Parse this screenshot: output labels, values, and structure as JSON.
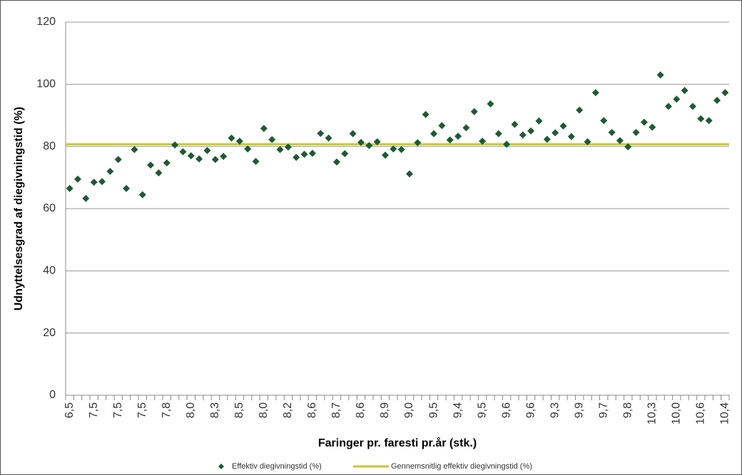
{
  "chart_data": {
    "type": "scatter",
    "x_label": "Faringer pr. faresti pr.år (stk.)",
    "y_label": "Udnyttelsesgrad af diegivningstid (%)",
    "categories": [
      "6,5",
      null,
      null,
      "7,5",
      null,
      null,
      "7,5",
      null,
      null,
      "7,5",
      null,
      null,
      "7,8",
      null,
      null,
      "8,0",
      null,
      null,
      "8,3",
      null,
      null,
      "8,5",
      null,
      null,
      "8,0",
      null,
      null,
      "8,2",
      null,
      null,
      "8,6",
      null,
      null,
      "8,7",
      null,
      null,
      "8,6",
      null,
      null,
      "8,9",
      null,
      null,
      "9,0",
      null,
      null,
      "9,5",
      null,
      null,
      "9,4",
      null,
      null,
      "9,5",
      null,
      null,
      "9,6",
      null,
      null,
      "9,6",
      null,
      null,
      "9,3",
      null,
      null,
      "9,9",
      null,
      null,
      "9,7",
      null,
      null,
      "9,8",
      null,
      null,
      "10,3",
      null,
      null,
      "10,0",
      null,
      null,
      "10,6",
      null,
      null,
      "10,4"
    ],
    "series": [
      {
        "name": "Effektiv diegivningstid (%)",
        "color": "#1e5a32",
        "values": [
          66.5,
          69.5,
          63.3,
          68.5,
          68.7,
          72,
          75.8,
          66.5,
          79,
          64.5,
          74,
          71.5,
          74.7,
          80.5,
          78.3,
          77,
          76,
          78.7,
          75.8,
          76.8,
          82.7,
          81.7,
          79.2,
          75.2,
          85.8,
          82.2,
          79,
          79.8,
          76.5,
          77.5,
          77.8,
          84.2,
          82.7,
          75,
          77.7,
          84.1,
          81.3,
          80.3,
          81.5,
          77.2,
          79.2,
          79,
          71.2,
          81.2,
          90.3,
          84.1,
          86.7,
          82.1,
          83.3,
          86,
          91.2,
          81.7,
          93.7,
          84.1,
          80.7,
          87.1,
          83.7,
          85,
          88.2,
          82.3,
          84.4,
          86.6,
          83.2,
          91.7,
          81.5,
          97.3,
          88.3,
          84.5,
          81.9,
          79.9,
          84.5,
          87.8,
          86.2,
          103,
          92.9,
          95.2,
          98,
          92.9,
          88.9,
          88.3,
          94.8,
          97.3
        ]
      }
    ],
    "reference_line": {
      "name": "Gennemsnitlig effektiv diegivningstid (%)",
      "color": "#c8c832",
      "value": 80.7
    },
    "ylim": [
      0,
      120
    ],
    "yticks": [
      0,
      20,
      40,
      60,
      80,
      100,
      120
    ],
    "grid": true
  }
}
